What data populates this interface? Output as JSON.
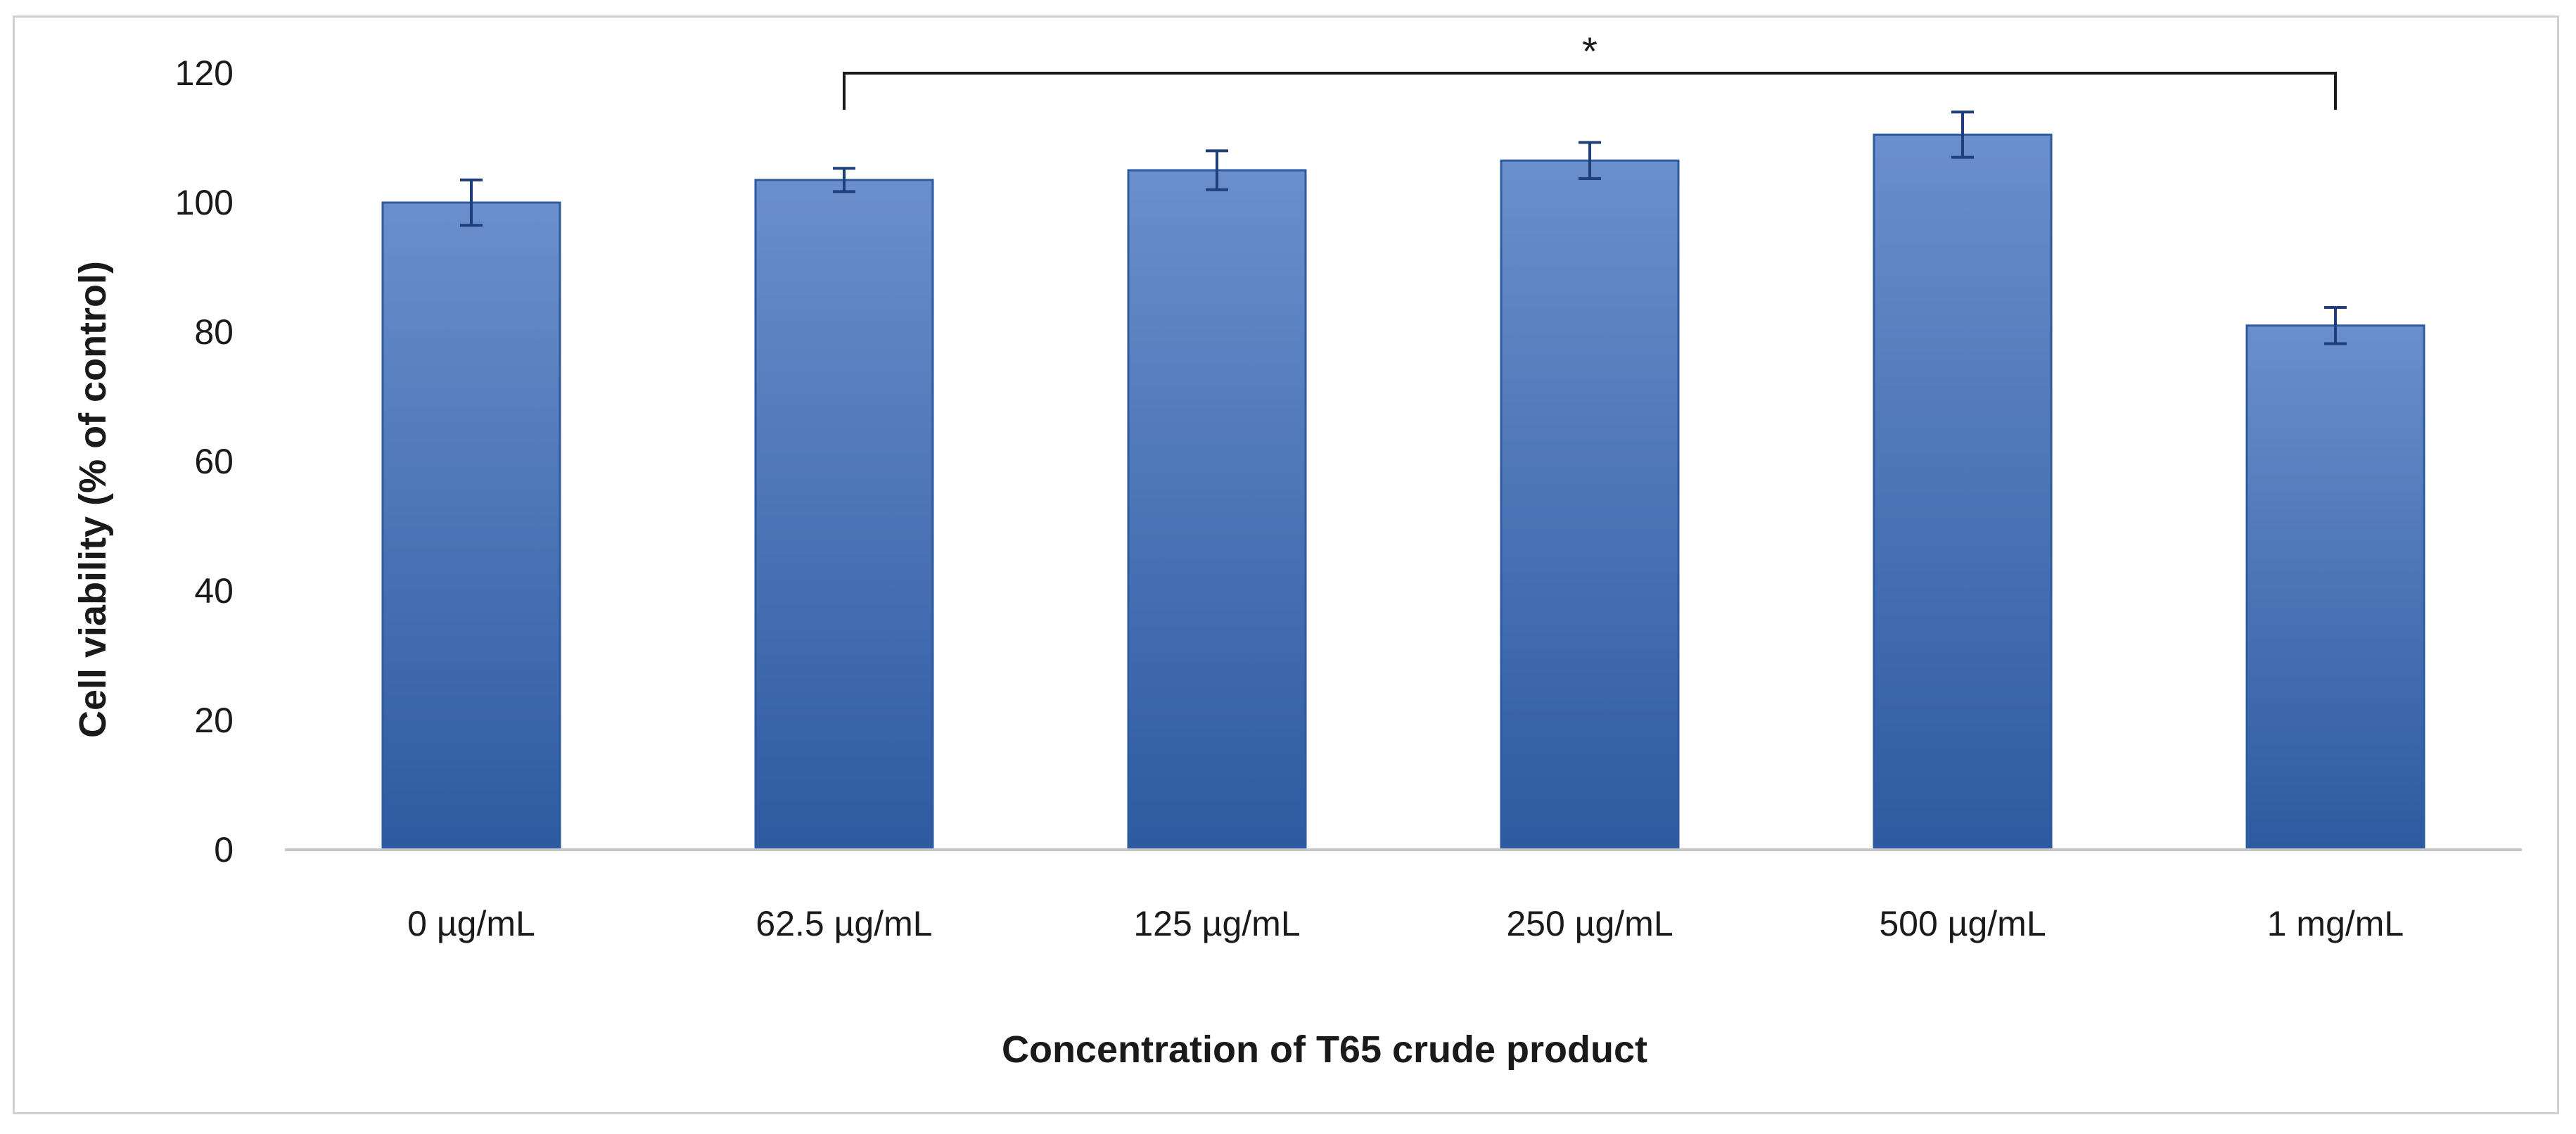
{
  "chart_data": {
    "type": "bar",
    "title": "",
    "xlabel": "Concentration of T65 crude product",
    "ylabel": "Cell viability (% of control)",
    "ylim": [
      0,
      120
    ],
    "yticks": [
      0,
      20,
      40,
      60,
      80,
      100,
      120
    ],
    "categories": [
      "0 µg/mL",
      "62.5 µg/mL",
      "125 µg/mL",
      "250 µg/mL",
      "500 µg/mL",
      "1 mg/mL"
    ],
    "series": [
      {
        "name": "Cell viability",
        "values": [
          100,
          103.5,
          105,
          106.5,
          110.5,
          81
        ],
        "errors": [
          3.5,
          1.8,
          3.0,
          2.8,
          3.5,
          2.8
        ]
      }
    ],
    "significance": {
      "label": "*",
      "from_category": "62.5 µg/mL",
      "to_category": "1 mg/mL"
    },
    "grid": false,
    "legend": "none",
    "colors": {
      "bar": "#4a74b8",
      "bar_light": "#6a8fcc",
      "bar_dark": "#2d5aa0",
      "axis": "#c8c8c8",
      "text": "#1a1a1a"
    }
  }
}
